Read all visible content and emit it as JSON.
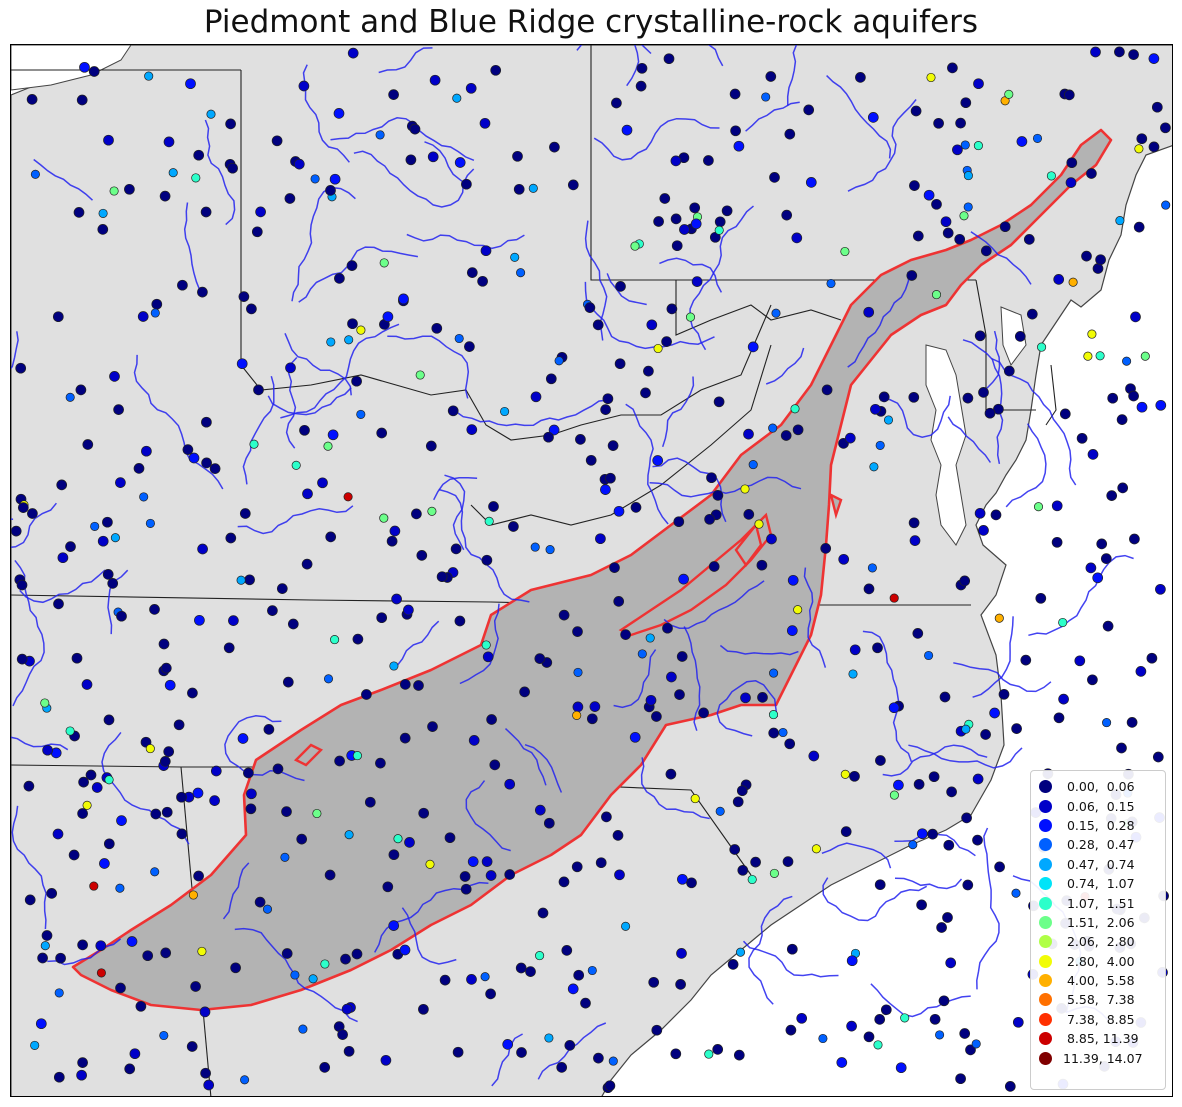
{
  "title": "Piedmont and Blue Ridge crystalline-rock aquifers",
  "colors": {
    "land": "#e0e0e0",
    "water": "#ffffff",
    "aquifer_fill": "#b3b3b3",
    "aquifer_outline": "#ee3333",
    "rivers": "#2222ee",
    "borders": "#222222"
  },
  "legend": {
    "items": [
      {
        "label": " 0.00,  0.06",
        "color": "#00007f"
      },
      {
        "label": " 0.06,  0.15",
        "color": "#0000c8"
      },
      {
        "label": " 0.15,  0.28",
        "color": "#0010ff"
      },
      {
        "label": " 0.28,  0.47",
        "color": "#0060ff"
      },
      {
        "label": " 0.47,  0.74",
        "color": "#00a8ff"
      },
      {
        "label": " 0.74,  1.07",
        "color": "#00e4f8"
      },
      {
        "label": " 1.07,  1.51",
        "color": "#2cffca"
      },
      {
        "label": " 1.51,  2.06",
        "color": "#6cff8a"
      },
      {
        "label": " 2.06,  2.80",
        "color": "#b0ff46"
      },
      {
        "label": " 2.80,  4.00",
        "color": "#f1fc06"
      },
      {
        "label": " 4.00,  5.58",
        "color": "#ffb000"
      },
      {
        "label": " 5.58,  7.38",
        "color": "#ff7000"
      },
      {
        "label": " 7.38,  8.85",
        "color": "#ff3000"
      },
      {
        "label": " 8.85, 11.39",
        "color": "#cc0000"
      },
      {
        "label": "11.39, 14.07",
        "color": "#800000"
      }
    ]
  }
}
